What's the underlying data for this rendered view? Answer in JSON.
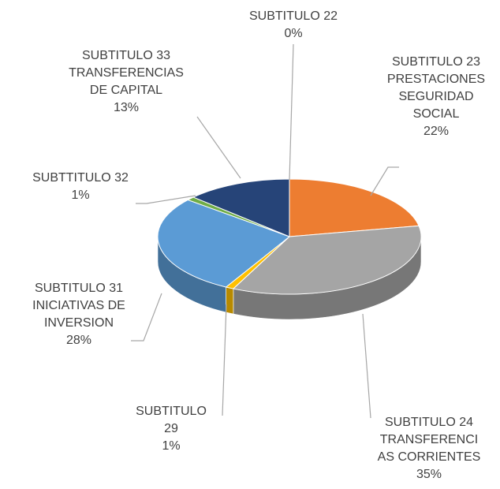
{
  "chart_data": {
    "type": "pie3d",
    "categories": [
      "SUBTITULO 22",
      "SUBTITULO 23\nPRESTACIONES\nSEGURIDAD\nSOCIAL",
      "SUBTITULO 24\nTRANSFERENCI\nAS CORRIENTES",
      "SUBTITULO\n29",
      "SUBTITULO 31\nINICIATIVAS DE\nINVERSION",
      "SUBTTITULO 32",
      "SUBTITULO 33\nTRANSFERENCIAS\nDE CAPITAL"
    ],
    "values": [
      0,
      22,
      35,
      1,
      28,
      1,
      13
    ],
    "value_labels": [
      "0%",
      "22%",
      "35%",
      "1%",
      "28%",
      "1%",
      "13%"
    ],
    "colors": [
      "#4472c4",
      "#ed7d31",
      "#a5a5a5",
      "#ffc000",
      "#5b9bd5",
      "#70ad47",
      "#264478"
    ]
  }
}
